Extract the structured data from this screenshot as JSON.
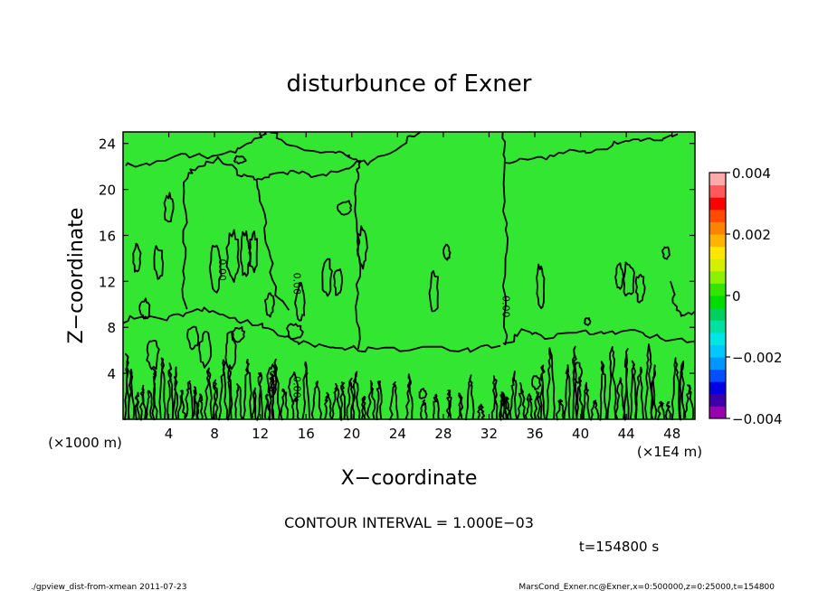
{
  "chart_data": {
    "type": "heatmap",
    "title": "disturbunce of Exner",
    "xlabel": "X−coordinate",
    "ylabel": "Z−coordinate",
    "x_unit_left": "(×1000 m)",
    "x_unit_right": "(×1E4 m)",
    "xlim": [
      0,
      50
    ],
    "ylim": [
      0,
      25
    ],
    "x_ticks": [
      4,
      8,
      12,
      16,
      20,
      24,
      28,
      32,
      36,
      40,
      44,
      48
    ],
    "y_ticks": [
      4,
      8,
      12,
      16,
      20,
      24
    ],
    "contour_interval_text": "CONTOUR INTERVAL = 1.000E−03",
    "time_text": "t=154800 s",
    "contour_labels": [
      {
        "text": "0.00",
        "x": 14.9,
        "y": 11.8
      },
      {
        "text": "0.00",
        "x": 33.2,
        "y": 9.8
      },
      {
        "text": "0.00",
        "x": 8.4,
        "y": 13.0
      },
      {
        "text": "0.00",
        "x": 12.8,
        "y": 3.3
      },
      {
        "text": "0.00",
        "x": 14.9,
        "y": 2.8
      }
    ],
    "colorbar": {
      "min": -0.004,
      "max": 0.004,
      "tick_labels": [
        "0.004",
        "0.002",
        "0",
        "−0.002",
        "−0.004"
      ],
      "tick_values": [
        0.004,
        0.002,
        0,
        -0.002,
        -0.004
      ],
      "colors": [
        "#9b00b0",
        "#3c00a8",
        "#0000e0",
        "#0050ff",
        "#0096ff",
        "#00c8ff",
        "#00e6e6",
        "#00e0a0",
        "#00d060",
        "#00dc00",
        "#32e600",
        "#8cf000",
        "#d2f000",
        "#ffe600",
        "#ffb400",
        "#ff8200",
        "#ff4b00",
        "#ff0000",
        "#ff5a5a",
        "#ffaaaa"
      ]
    },
    "field_color": "#32e632"
  },
  "footer": {
    "left": "./gpview_dist-from-xmean   2011-07-23",
    "right": "MarsCond_Exner.nc@Exner,x=0:500000,z=0:25000,t=154800"
  }
}
